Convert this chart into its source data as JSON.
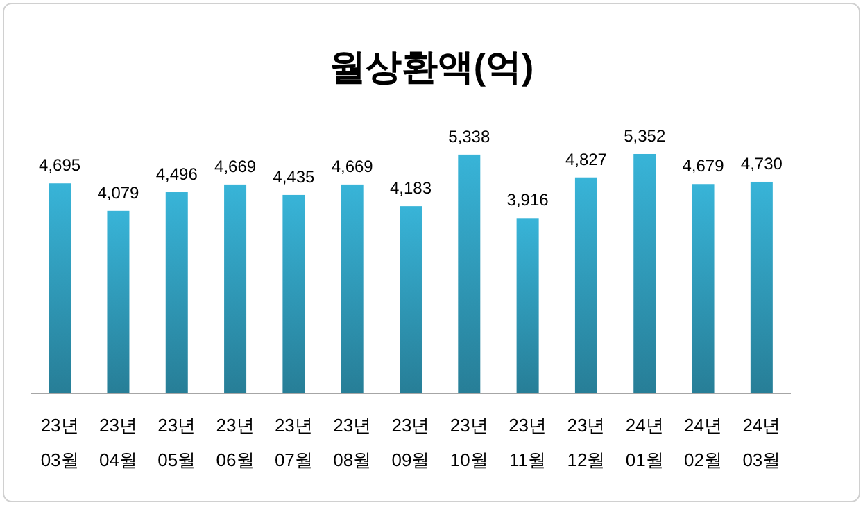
{
  "chart_data": {
    "type": "bar",
    "title": "월상환액(억)",
    "categories": [
      "23년\n03월",
      "23년\n04월",
      "23년\n05월",
      "23년\n06월",
      "23년\n07월",
      "23년\n08월",
      "23년\n09월",
      "23년\n10월",
      "23년\n11월",
      "23년\n12월",
      "24년\n01월",
      "24년\n02월",
      "24년\n03월"
    ],
    "values": [
      4695,
      4079,
      4496,
      4669,
      4435,
      4669,
      4183,
      5338,
      3916,
      4827,
      5352,
      4679,
      4730
    ],
    "color": "#38b4d8",
    "value_labels": [
      "4,695",
      "4,079",
      "4,496",
      "4,669",
      "4,435",
      "4,669",
      "4,183",
      "5,338",
      "3,916",
      "4,827",
      "5,352",
      "4,679",
      "4,730"
    ]
  }
}
